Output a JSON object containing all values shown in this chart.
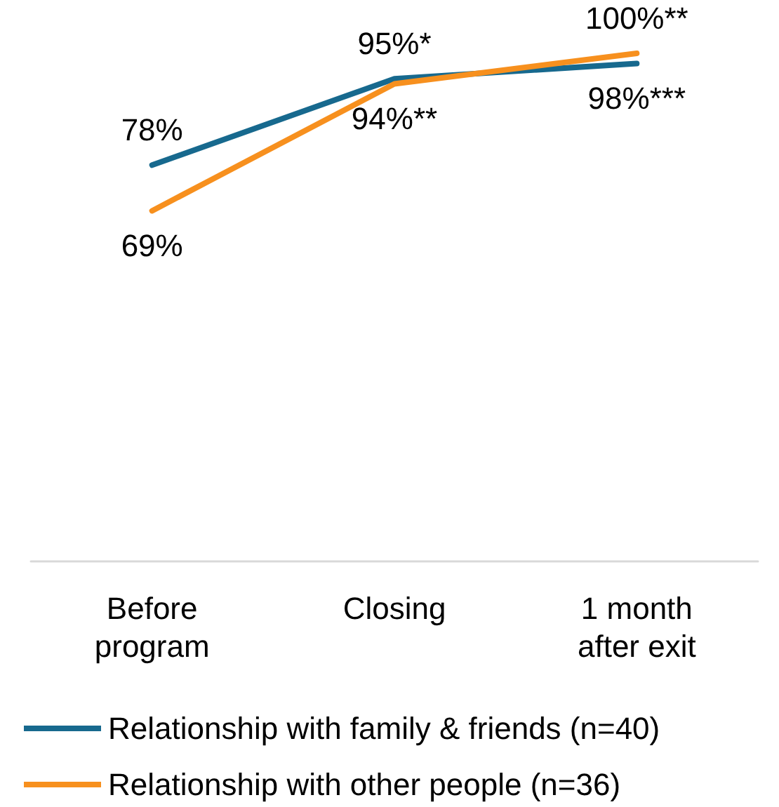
{
  "chart_data": {
    "type": "line",
    "categories": [
      "Before\nprogram",
      "Closing",
      "1 month\nafter exit"
    ],
    "series": [
      {
        "name": "Relationship with family & friends (n=40)",
        "color": "#17698e",
        "values": [
          78,
          95,
          98
        ],
        "value_labels": [
          "78%",
          "95%*",
          "98%***"
        ]
      },
      {
        "name": "Relationship with other people (n=36)",
        "color": "#f7901e",
        "values": [
          69,
          94,
          100
        ],
        "value_labels": [
          "69%",
          "94%**",
          "100%**"
        ]
      }
    ],
    "tick_labels": "x",
    "grid": false,
    "legend": "bottom",
    "marker": "none",
    "line_style": "solid"
  }
}
